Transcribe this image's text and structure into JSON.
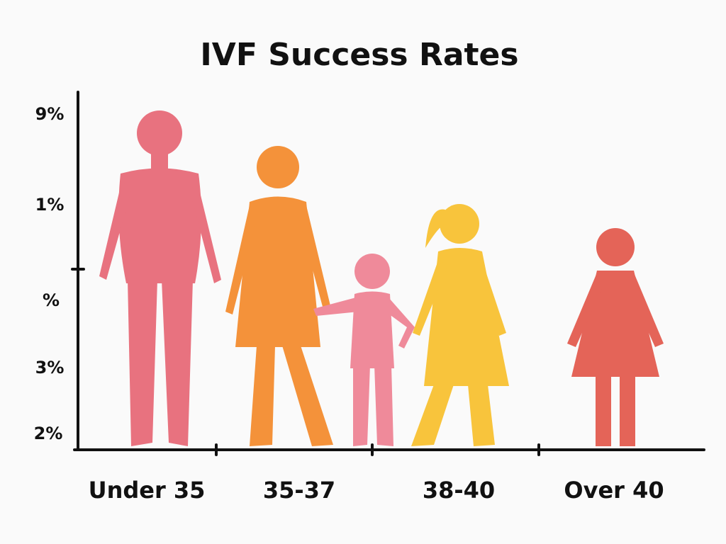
{
  "title": "IVF Success Rates",
  "y_axis_labels": [
    "9%",
    "1%",
    "%",
    "3%",
    "2%"
  ],
  "categories": [
    "Under 35",
    "35-37",
    "38-40",
    "Over 40"
  ]
}
